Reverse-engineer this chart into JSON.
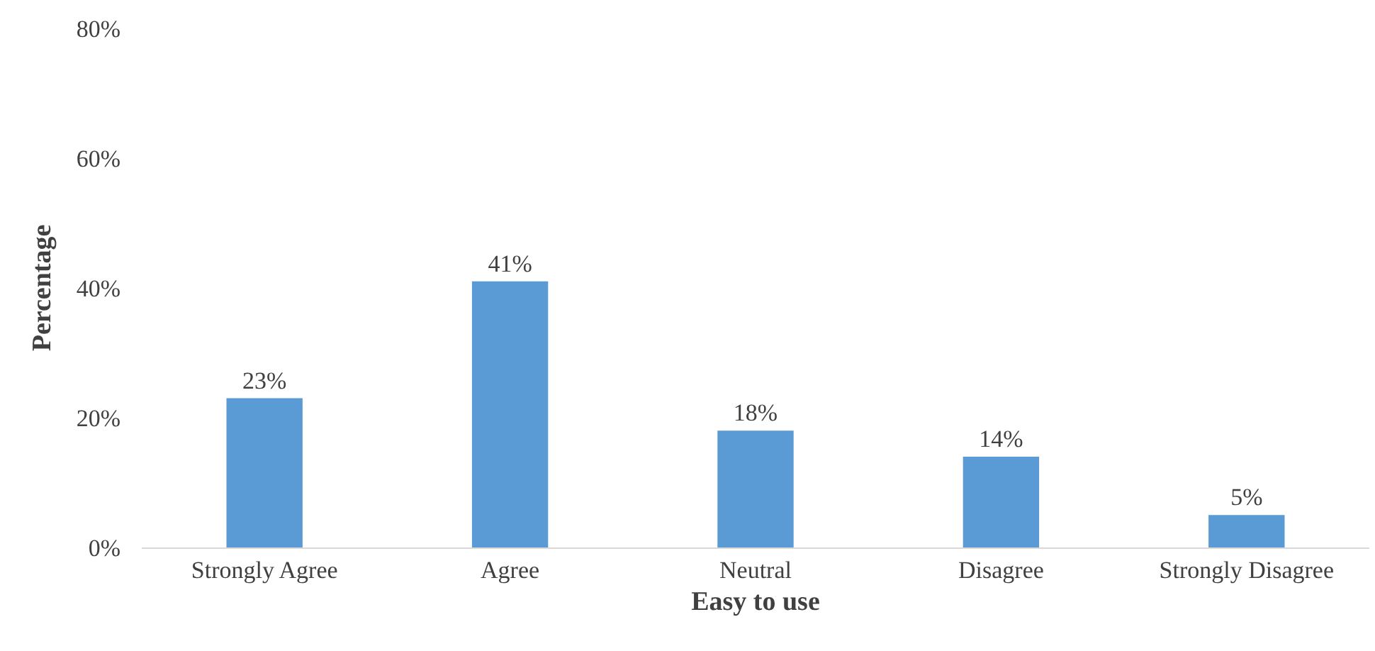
{
  "chart_data": {
    "type": "bar",
    "xlabel": "Easy to use",
    "ylabel": "Percentage",
    "categories": [
      "Strongly Agree",
      "Agree",
      "Neutral",
      "Disagree",
      "Strongly Disagree"
    ],
    "values": [
      23,
      41,
      18,
      14,
      5
    ],
    "value_labels": [
      "23%",
      "41%",
      "18%",
      "14%",
      "5%"
    ],
    "color": "#5b9bd5",
    "ylim": [
      0,
      80
    ],
    "yticks": [
      {
        "value": 0,
        "label": "0%"
      },
      {
        "value": 20,
        "label": "20%"
      },
      {
        "value": 40,
        "label": "40%"
      },
      {
        "value": 60,
        "label": "60%"
      },
      {
        "value": 80,
        "label": "80%"
      }
    ],
    "grid": false,
    "legend": false
  }
}
